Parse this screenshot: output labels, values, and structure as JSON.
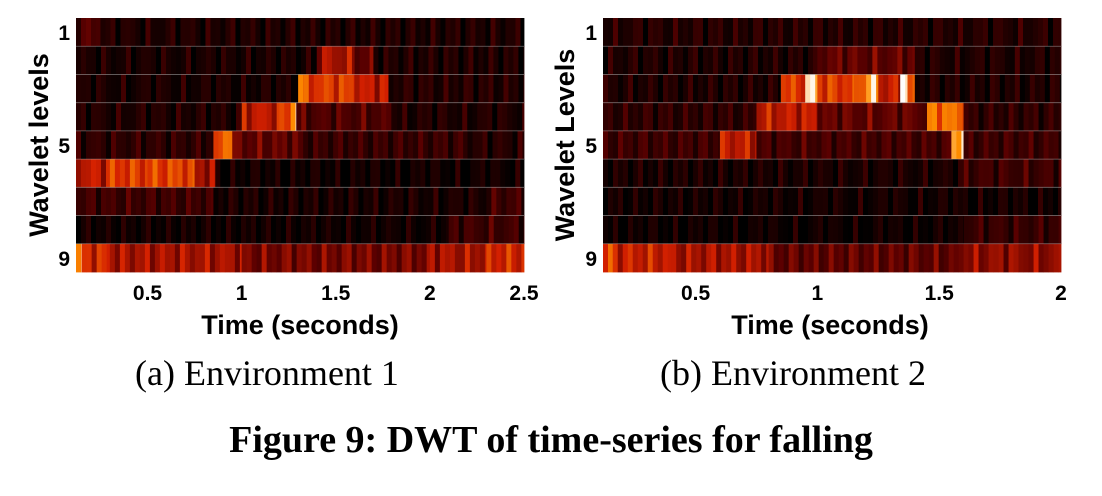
{
  "figure": {
    "caption": "Figure 9: DWT of time-series for falling"
  },
  "chart_data": [
    {
      "type": "heatmap",
      "caption": "(a) Environment 1",
      "xlabel": "Time (seconds)",
      "ylabel": "Wavelet levels",
      "xticks": [
        0.5,
        1,
        1.5,
        2,
        2.5
      ],
      "xtick_labels": [
        "0.5",
        "1",
        "1.5",
        "2",
        "2.5"
      ],
      "yticks": [
        1,
        5,
        9
      ],
      "ytick_labels": [
        "1",
        "5",
        "9"
      ],
      "xlim": [
        0.12,
        2.5
      ],
      "ylim": [
        1,
        9
      ],
      "colormap": "hot",
      "colors": {
        "low": "#000000",
        "mid1": "#5a0000",
        "mid2": "#d42000",
        "mid3": "#ff9000",
        "high": "#ffffff"
      },
      "grid": true,
      "levels": [
        {
          "level": 1,
          "segments": [
            [
              0.12,
              0.25,
              0.25
            ],
            [
              0.25,
              2.5,
              0.1
            ]
          ]
        },
        {
          "level": 2,
          "segments": [
            [
              0.12,
              1.4,
              0.08
            ],
            [
              1.4,
              1.6,
              0.45
            ],
            [
              1.6,
              1.7,
              0.3
            ],
            [
              1.7,
              2.5,
              0.1
            ]
          ]
        },
        {
          "level": 3,
          "segments": [
            [
              0.12,
              1.3,
              0.08
            ],
            [
              1.3,
              1.33,
              0.7
            ],
            [
              1.33,
              1.6,
              0.6
            ],
            [
              1.6,
              1.78,
              0.5
            ],
            [
              1.78,
              2.5,
              0.12
            ]
          ]
        },
        {
          "level": 4,
          "segments": [
            [
              0.12,
              1.0,
              0.1
            ],
            [
              1.0,
              1.2,
              0.5
            ],
            [
              1.2,
              1.26,
              0.6
            ],
            [
              1.26,
              1.29,
              0.9
            ],
            [
              1.29,
              1.8,
              0.25
            ],
            [
              1.8,
              2.5,
              0.1
            ]
          ]
        },
        {
          "level": 5,
          "segments": [
            [
              0.12,
              0.85,
              0.15
            ],
            [
              0.85,
              0.9,
              0.55
            ],
            [
              0.9,
              0.95,
              0.8
            ],
            [
              0.95,
              1.3,
              0.3
            ],
            [
              1.3,
              2.2,
              0.18
            ],
            [
              2.2,
              2.5,
              0.12
            ]
          ]
        },
        {
          "level": 6,
          "segments": [
            [
              0.12,
              0.3,
              0.5
            ],
            [
              0.3,
              0.5,
              0.6
            ],
            [
              0.5,
              0.75,
              0.62
            ],
            [
              0.75,
              0.86,
              0.45
            ],
            [
              0.86,
              2.5,
              0.05
            ]
          ]
        },
        {
          "level": 7,
          "segments": [
            [
              0.12,
              0.85,
              0.2
            ],
            [
              0.85,
              2.3,
              0.08
            ],
            [
              2.3,
              2.5,
              0.2
            ]
          ]
        },
        {
          "level": 8,
          "segments": [
            [
              0.12,
              2.1,
              0.05
            ],
            [
              2.1,
              2.5,
              0.2
            ]
          ]
        },
        {
          "level": 9,
          "segments": [
            [
              0.12,
              0.15,
              0.78
            ],
            [
              0.15,
              0.3,
              0.55
            ],
            [
              0.3,
              1.0,
              0.45
            ],
            [
              1.0,
              2.0,
              0.35
            ],
            [
              2.0,
              2.3,
              0.45
            ],
            [
              2.3,
              2.5,
              0.55
            ]
          ]
        }
      ]
    },
    {
      "type": "heatmap",
      "caption": "(b) Environment 2",
      "xlabel": "Time (seconds)",
      "ylabel": "Wavelet Levels",
      "xticks": [
        0.5,
        1,
        1.5,
        2
      ],
      "xtick_labels": [
        "0.5",
        "1",
        "1.5",
        "2"
      ],
      "yticks": [
        1,
        5,
        9
      ],
      "ytick_labels": [
        "1",
        "5",
        "9"
      ],
      "xlim": [
        0.12,
        2.0
      ],
      "ylim": [
        1,
        9
      ],
      "colormap": "hot",
      "colors": {
        "low": "#000000",
        "mid1": "#5a0000",
        "mid2": "#d42000",
        "mid3": "#ff9000",
        "high": "#ffffff"
      },
      "grid": true,
      "levels": [
        {
          "level": 1,
          "segments": [
            [
              0.12,
              2.0,
              0.12
            ]
          ]
        },
        {
          "level": 2,
          "segments": [
            [
              0.12,
              1.0,
              0.1
            ],
            [
              1.0,
              1.4,
              0.3
            ],
            [
              1.4,
              2.0,
              0.1
            ]
          ]
        },
        {
          "level": 3,
          "segments": [
            [
              0.12,
              0.85,
              0.1
            ],
            [
              0.85,
              0.95,
              0.6
            ],
            [
              0.95,
              1.0,
              0.9
            ],
            [
              1.0,
              1.15,
              0.6
            ],
            [
              1.15,
              1.2,
              0.7
            ],
            [
              1.2,
              1.25,
              0.85
            ],
            [
              1.25,
              1.34,
              0.5
            ],
            [
              1.34,
              1.37,
              1.0
            ],
            [
              1.37,
              1.4,
              0.6
            ],
            [
              1.4,
              2.0,
              0.1
            ]
          ]
        },
        {
          "level": 4,
          "segments": [
            [
              0.12,
              0.75,
              0.15
            ],
            [
              0.75,
              1.0,
              0.5
            ],
            [
              1.0,
              1.45,
              0.3
            ],
            [
              1.45,
              1.6,
              0.72
            ],
            [
              1.6,
              2.0,
              0.15
            ]
          ]
        },
        {
          "level": 5,
          "segments": [
            [
              0.12,
              0.6,
              0.2
            ],
            [
              0.6,
              0.75,
              0.5
            ],
            [
              0.75,
              1.55,
              0.22
            ],
            [
              1.55,
              1.6,
              0.88
            ],
            [
              1.6,
              2.0,
              0.2
            ]
          ]
        },
        {
          "level": 6,
          "segments": [
            [
              0.12,
              1.6,
              0.08
            ],
            [
              1.6,
              2.0,
              0.2
            ]
          ]
        },
        {
          "level": 7,
          "segments": [
            [
              0.12,
              2.0,
              0.06
            ]
          ]
        },
        {
          "level": 8,
          "segments": [
            [
              0.12,
              1.6,
              0.04
            ],
            [
              1.6,
              2.0,
              0.18
            ]
          ]
        },
        {
          "level": 9,
          "segments": [
            [
              0.12,
              0.16,
              0.6
            ],
            [
              0.16,
              0.4,
              0.52
            ],
            [
              0.4,
              0.8,
              0.45
            ],
            [
              0.8,
              1.6,
              0.3
            ],
            [
              1.6,
              2.0,
              0.4
            ]
          ]
        }
      ]
    }
  ]
}
